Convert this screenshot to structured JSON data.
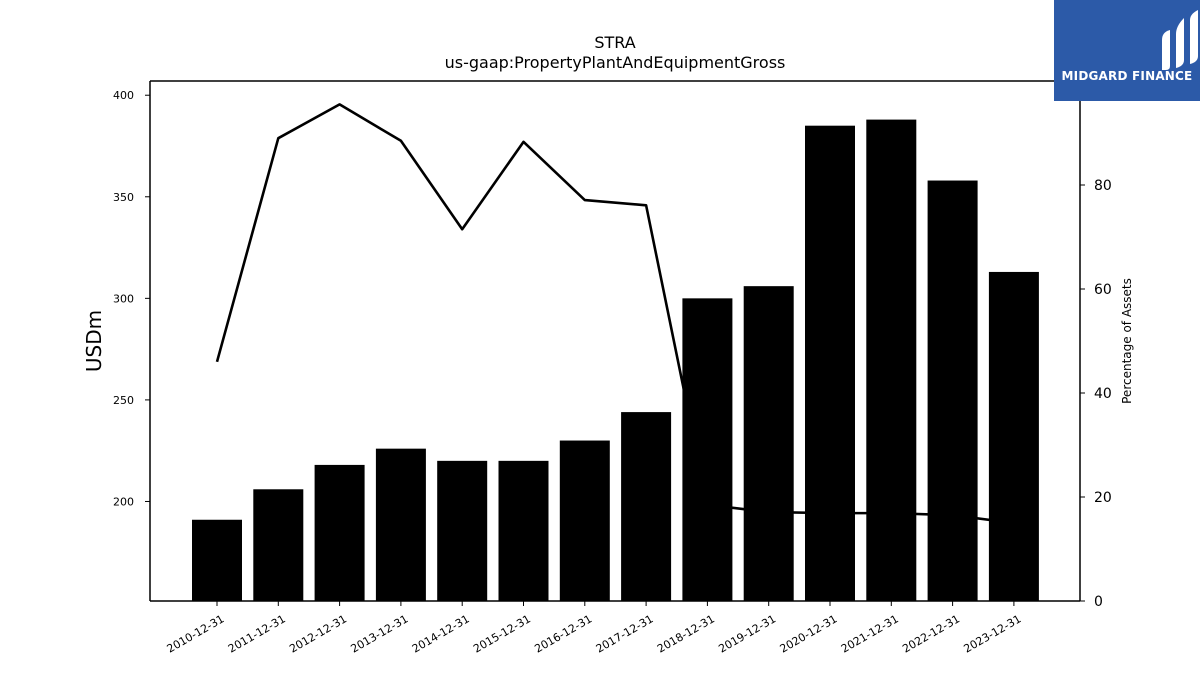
{
  "logo": {
    "text": "MIDGARD FINANCE"
  },
  "chart_data": {
    "type": "bar",
    "title": "STRA",
    "subtitle": "us-gaap:PropertyPlantAndEquipmentGross",
    "ylabel": "USDm",
    "y2label": "Percentage of Assets",
    "categories": [
      "2010-12-31",
      "2011-12-31",
      "2012-12-31",
      "2013-12-31",
      "2014-12-31",
      "2015-12-31",
      "2016-12-31",
      "2017-12-31",
      "2018-12-31",
      "2019-12-31",
      "2020-12-31",
      "2021-12-31",
      "2022-12-31",
      "2023-12-31"
    ],
    "series": [
      {
        "type": "bar",
        "axis": "left",
        "color": "#000000",
        "values": [
          191,
          206,
          218,
          226,
          220,
          220,
          230,
          244,
          300,
          306,
          385,
          388,
          358,
          313
        ]
      },
      {
        "type": "line",
        "axis": "right",
        "color": "#000000",
        "values": [
          46,
          89,
          95.5,
          88.5,
          71.5,
          88.3,
          77.1,
          76.1,
          18.5,
          17.1,
          16.9,
          16.9,
          16.5,
          15
        ]
      }
    ],
    "ylim": [
      151,
      407
    ],
    "yticks": [
      200,
      250,
      300,
      350,
      400
    ],
    "y2lim": [
      0,
      100
    ],
    "y2ticks": [
      0,
      20,
      40,
      60,
      80
    ],
    "grid": false,
    "legend": "none",
    "colors": {
      "bar": "#000000",
      "line": "#000000",
      "logo_bg": "#2c5aa8"
    }
  }
}
